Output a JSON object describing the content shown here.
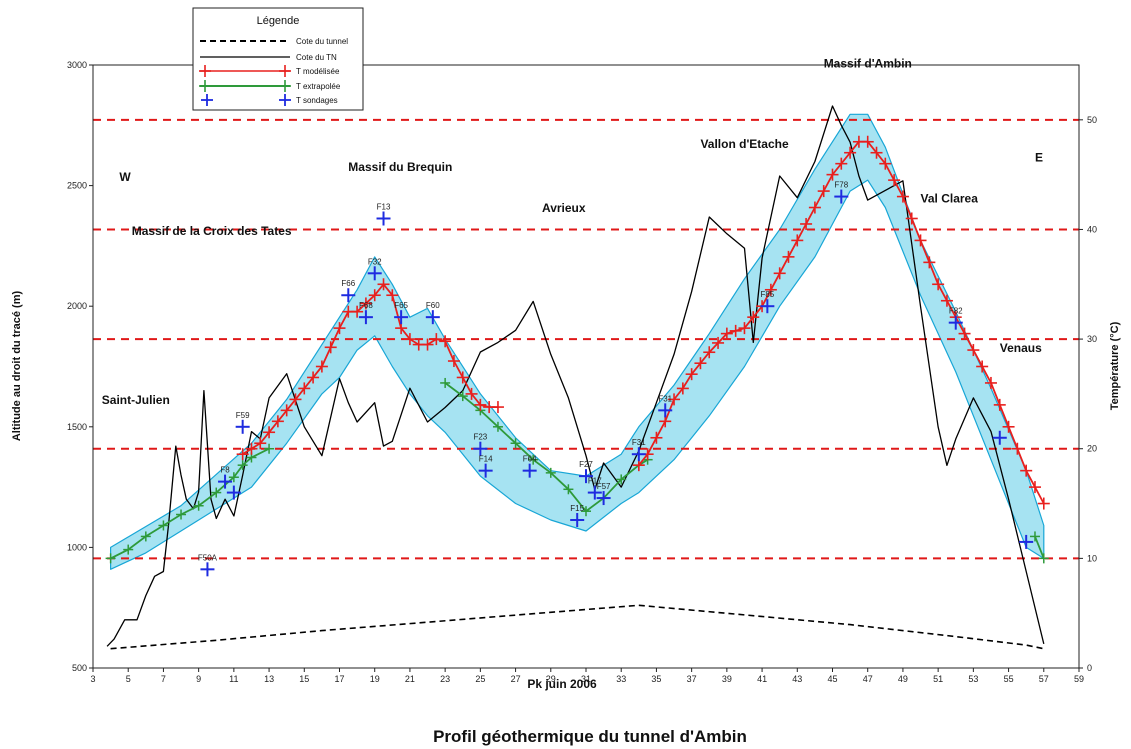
{
  "chart_data": {
    "type": "line",
    "title": "Profil géothermique du tunnel d'Ambin",
    "xlabel": "Pk juin 2006",
    "ylabel": "Altitude au droit du tracé (m)",
    "y2label": "Température (°C)",
    "xlim": [
      3,
      59
    ],
    "ylim": [
      500,
      3000
    ],
    "y2lim": [
      0,
      55
    ],
    "x_ticks": [
      3,
      5,
      7,
      9,
      11,
      13,
      15,
      17,
      19,
      21,
      23,
      25,
      27,
      29,
      31,
      33,
      35,
      37,
      39,
      41,
      43,
      45,
      47,
      49,
      51,
      53,
      55,
      57,
      59
    ],
    "y_ticks": [
      500,
      1000,
      1500,
      2000,
      2500,
      3000
    ],
    "y2_ticks": [
      0,
      10,
      20,
      30,
      40,
      50
    ],
    "grid": false,
    "reference_lines_temperature": [
      10,
      20,
      30,
      40,
      50
    ],
    "legend": {
      "title": "Légende",
      "position": "top-left",
      "entries": [
        "Cote du tunnel",
        "Cote du TN",
        "T modélisée",
        "T extrapolée",
        "T sondages"
      ]
    },
    "colors": {
      "tunnel": "#000000",
      "tn": "#000000",
      "modelled": "#e8201e",
      "extrapolated": "#2e9a3a",
      "boreholes": "#1e2be0",
      "band_fill": "#a6e3f2",
      "band_stroke": "#18a6d6",
      "reference": "#e01818"
    },
    "annotations": [
      {
        "text": "W",
        "x": 4.5,
        "y": 2520
      },
      {
        "text": "Massif du Brequin",
        "x": 17.5,
        "y": 2560
      },
      {
        "text": "Massif de la Croix des Tates",
        "x": 5.2,
        "y": 2295
      },
      {
        "text": "Saint-Julien",
        "x": 3.5,
        "y": 1595
      },
      {
        "text": "Avrieux",
        "x": 28.5,
        "y": 2390
      },
      {
        "text": "Vallon d'Etache",
        "x": 37.5,
        "y": 2655
      },
      {
        "text": "Massif d'Ambin",
        "x": 44.5,
        "y": 2990
      },
      {
        "text": "E",
        "x": 56.5,
        "y": 2600
      },
      {
        "text": "Val Clarea",
        "x": 50,
        "y": 2430
      },
      {
        "text": "Venaus",
        "x": 54.5,
        "y": 1810
      }
    ],
    "series": [
      {
        "name": "Cote du tunnel",
        "x": [
          4,
          10,
          16,
          22,
          28,
          34,
          40,
          46,
          52,
          56,
          57
        ],
        "y": [
          580,
          615,
          655,
          690,
          725,
          760,
          720,
          680,
          630,
          595,
          580
        ]
      },
      {
        "name": "Cote du TN",
        "x": [
          3.8,
          4.2,
          4.8,
          5.5,
          6,
          6.5,
          7,
          7.3,
          7.7,
          8,
          8.3,
          8.7,
          9,
          9.3,
          9.7,
          10,
          10.5,
          11,
          11.5,
          12,
          12.5,
          13,
          14,
          15,
          16,
          17,
          17.5,
          18,
          19,
          19.5,
          20,
          21,
          22,
          23,
          24,
          25,
          26,
          27,
          28,
          29,
          30,
          31,
          31.5,
          32,
          33,
          34,
          35,
          36,
          37,
          38,
          39,
          40,
          40.5,
          41,
          42,
          43,
          44,
          45,
          45.5,
          46,
          46.5,
          47,
          48,
          49,
          50,
          51,
          51.5,
          52,
          53,
          54,
          55,
          56,
          57
        ],
        "y": [
          590,
          620,
          700,
          700,
          800,
          880,
          900,
          1100,
          1420,
          1300,
          1200,
          1160,
          1230,
          1650,
          1200,
          1120,
          1200,
          1130,
          1300,
          1480,
          1450,
          1620,
          1720,
          1500,
          1380,
          1700,
          1600,
          1520,
          1600,
          1420,
          1440,
          1660,
          1520,
          1580,
          1650,
          1810,
          1850,
          1900,
          2020,
          1800,
          1620,
          1380,
          1240,
          1350,
          1250,
          1400,
          1600,
          1800,
          2060,
          2370,
          2300,
          2240,
          1850,
          2200,
          2540,
          2450,
          2600,
          2830,
          2750,
          2680,
          2540,
          2440,
          2480,
          2520,
          2000,
          1500,
          1340,
          1450,
          1620,
          1480,
          1200,
          900,
          600
        ]
      },
      {
        "name": "T modélisée",
        "x": [
          11.5,
          12.5,
          13,
          14,
          15,
          16,
          17,
          17.5,
          18,
          19,
          19.5,
          20,
          20.5,
          21,
          21.5,
          22,
          22.5,
          23,
          23.5,
          24,
          24.5,
          25,
          25.5,
          26,
          34,
          34.5,
          35,
          35.5,
          36,
          36.5,
          37,
          38,
          39,
          40,
          41,
          41.5,
          42,
          43,
          44,
          45,
          46,
          46.5,
          47,
          47.5,
          48,
          49,
          50,
          51,
          52,
          53,
          54,
          55,
          56,
          57
        ],
        "y": [
          19.5,
          20.5,
          21.5,
          23.5,
          25.5,
          27.5,
          31,
          32.5,
          32.5,
          34,
          35,
          34,
          31,
          30,
          29.5,
          29.5,
          30,
          29.8,
          28,
          26.5,
          25,
          24,
          23.8,
          23.8,
          18.5,
          19.5,
          21,
          22.5,
          24.5,
          25.5,
          26.8,
          28.8,
          30.5,
          31,
          33,
          34.5,
          36,
          39,
          42,
          45,
          47,
          48,
          48,
          47,
          46,
          43,
          39,
          35,
          32,
          29,
          26,
          22,
          18,
          15
        ]
      },
      {
        "name": "T extrapolée",
        "x": [
          4,
          5,
          6,
          7,
          8,
          9,
          10,
          11,
          11.5,
          12,
          13,
          23,
          24,
          25,
          26,
          27,
          28,
          29,
          30,
          31,
          32,
          33,
          34,
          34.5,
          56.5,
          57
        ],
        "y": [
          10,
          10.8,
          12,
          13,
          14,
          14.8,
          16,
          17.4,
          18.5,
          19.2,
          20,
          26,
          24.8,
          23.5,
          22,
          20.5,
          19,
          17.8,
          16.3,
          14.3,
          15.5,
          17.2,
          18.5,
          19,
          12,
          10
        ]
      },
      {
        "name": "T sondages",
        "points": [
          {
            "x": 9.5,
            "y": 9,
            "label": "F50A"
          },
          {
            "x": 10.5,
            "y": 17,
            "label": "F8"
          },
          {
            "x": 11,
            "y": 16,
            "label": ""
          },
          {
            "x": 11.5,
            "y": 22,
            "label": "F59"
          },
          {
            "x": 17.5,
            "y": 34,
            "label": "F66"
          },
          {
            "x": 18.5,
            "y": 32,
            "label": "F68"
          },
          {
            "x": 19,
            "y": 36,
            "label": "F32"
          },
          {
            "x": 19.5,
            "y": 41,
            "label": "F13"
          },
          {
            "x": 20.5,
            "y": 32,
            "label": "F65"
          },
          {
            "x": 22.3,
            "y": 32,
            "label": "F60"
          },
          {
            "x": 25,
            "y": 20,
            "label": "F23"
          },
          {
            "x": 25.3,
            "y": 18,
            "label": "F14"
          },
          {
            "x": 27.8,
            "y": 18,
            "label": "F64"
          },
          {
            "x": 30.5,
            "y": 13.5,
            "label": "F15"
          },
          {
            "x": 31,
            "y": 17.5,
            "label": "F27"
          },
          {
            "x": 31.5,
            "y": 16,
            "label": "F17"
          },
          {
            "x": 32,
            "y": 15.5,
            "label": "F57"
          },
          {
            "x": 34,
            "y": 19.5,
            "label": "F31"
          },
          {
            "x": 35.5,
            "y": 23.5,
            "label": "F31"
          },
          {
            "x": 41.3,
            "y": 33,
            "label": "F85"
          },
          {
            "x": 45.5,
            "y": 43,
            "label": "F78"
          },
          {
            "x": 52,
            "y": 31.5,
            "label": "F82"
          },
          {
            "x": 54.5,
            "y": 21,
            "label": ""
          },
          {
            "x": 56,
            "y": 11.5,
            "label": ""
          }
        ]
      }
    ],
    "uncertainty_band": {
      "upper": {
        "x": [
          4,
          8,
          12,
          14,
          16,
          18,
          19,
          20,
          21,
          22,
          23,
          25,
          27,
          29,
          31,
          33,
          34,
          36,
          38,
          40,
          42,
          44,
          46,
          47,
          48,
          50,
          52,
          54,
          56,
          57
        ],
        "y": [
          11,
          14.8,
          20.5,
          24.5,
          29.5,
          34.5,
          37.5,
          35,
          32,
          32.8,
          30,
          25,
          21,
          18,
          17.5,
          19.5,
          22,
          25.8,
          30.5,
          35.5,
          40,
          45.5,
          50.5,
          50.5,
          47.5,
          39,
          32.5,
          25.5,
          18,
          13
        ]
      },
      "lower": {
        "x": [
          57,
          56,
          54,
          52,
          50,
          48,
          47,
          46,
          44,
          42,
          40,
          38,
          36,
          34,
          33,
          31,
          29,
          27,
          25,
          23,
          22,
          21,
          20,
          19,
          18,
          17,
          16,
          14,
          12,
          10,
          8,
          6,
          4
        ],
        "y": [
          10,
          11,
          19,
          27,
          34,
          42,
          44.5,
          43.5,
          37.5,
          33,
          27.5,
          23,
          19,
          16,
          15,
          12.5,
          13.5,
          15,
          17.5,
          21.5,
          23,
          25,
          27.5,
          30.3,
          29,
          26.5,
          25,
          20.5,
          16.5,
          14.5,
          12.5,
          10.5,
          9
        ]
      }
    }
  }
}
